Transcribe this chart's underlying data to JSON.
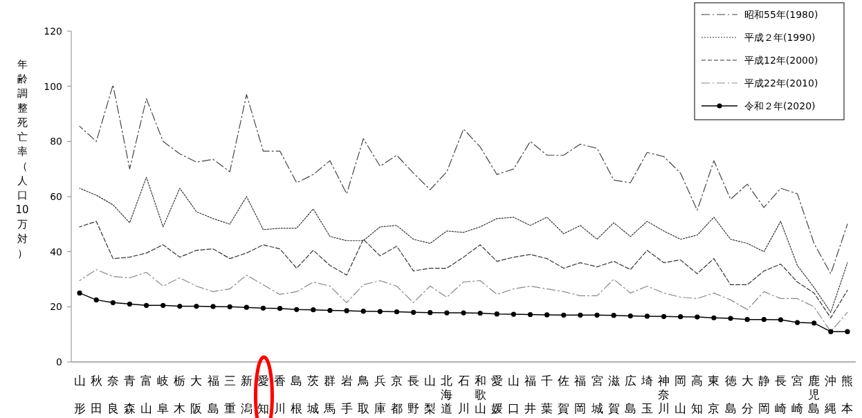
{
  "chart_data": {
    "type": "line",
    "ylabel": "年齢調整死亡率（人口10万対）",
    "categories": [
      "山形",
      "秋田",
      "奈良",
      "青森",
      "富山",
      "岐阜",
      "栃木",
      "大阪",
      "福島",
      "三重",
      "新潟",
      "愛知",
      "香川",
      "島根",
      "茨城",
      "群馬",
      "岩手",
      "鳥取",
      "兵庫",
      "京都",
      "長野",
      "山梨",
      "北海道",
      "石川",
      "和歌山",
      "愛媛",
      "山口",
      "福井",
      "千葉",
      "佐賀",
      "福岡",
      "宮城",
      "滋賀",
      "広島",
      "埼玉",
      "神奈川",
      "岡山",
      "高知",
      "東京",
      "徳島",
      "大分",
      "静岡",
      "長崎",
      "宮崎",
      "鹿児島",
      "沖縄",
      "熊本"
    ],
    "ylim": [
      0,
      120
    ],
    "yticks": [
      0,
      20,
      40,
      60,
      80,
      100,
      120
    ],
    "grid": false,
    "legend": "top right",
    "series": [
      {
        "name": "昭和55年(1980)",
        "color": "#444444",
        "line_style": "dashdot",
        "marker": "none",
        "values": [
          85.5,
          80,
          100.5,
          70,
          95.5,
          80,
          75.5,
          72.5,
          73.5,
          69,
          97,
          76.5,
          76.5,
          65,
          68,
          73,
          61,
          81,
          71,
          75,
          68.5,
          62.5,
          69,
          84.5,
          78,
          68,
          70,
          80,
          75,
          75,
          79,
          77.5,
          66,
          65,
          76,
          74.5,
          68.5,
          55,
          73,
          59,
          64.5,
          56,
          63,
          61,
          43,
          32,
          50
        ]
      },
      {
        "name": "平成２年(1990)",
        "color": "#333333",
        "line_style": "dotted",
        "marker": "none",
        "values": [
          63,
          60.5,
          57,
          50.5,
          67,
          49,
          63,
          54.5,
          52,
          50,
          60,
          48,
          48.5,
          48.5,
          55.5,
          45.5,
          44,
          44,
          49,
          49.5,
          44.5,
          43,
          47.5,
          47,
          49,
          52,
          52.5,
          49.5,
          52.5,
          46.5,
          49.5,
          44.5,
          50.5,
          45.5,
          51,
          47.5,
          44.5,
          46,
          52.5,
          44.5,
          43,
          40,
          51,
          35,
          27,
          18,
          36
        ]
      },
      {
        "name": "平成12年(2000)",
        "color": "#333333",
        "line_style": "dashed",
        "marker": "none",
        "values": [
          49,
          51,
          37.5,
          38,
          39.5,
          42.5,
          38,
          40.5,
          41,
          37.5,
          39.5,
          42.5,
          41,
          34,
          40.5,
          35,
          31.5,
          44.5,
          38.5,
          42,
          33,
          34,
          34,
          38,
          42.5,
          36.5,
          38,
          39,
          37.5,
          34,
          36,
          34.5,
          36.5,
          33.5,
          40.5,
          36,
          37,
          32,
          37.5,
          28,
          28,
          33,
          35.5,
          29,
          25,
          16,
          26
        ]
      },
      {
        "name": "平成22年(2010)",
        "color": "#888888",
        "line_style": "dashdot",
        "marker": "none",
        "values": [
          29.5,
          33.5,
          31,
          30.5,
          32.5,
          27.5,
          30.5,
          27.5,
          25.5,
          26.5,
          31.5,
          28,
          24.5,
          25.5,
          29,
          27.5,
          21.5,
          28,
          29.5,
          27.5,
          21.5,
          27.5,
          23.5,
          29,
          29.5,
          24.5,
          26.5,
          27.5,
          26.5,
          25.5,
          24,
          24,
          30,
          25,
          27.5,
          25,
          23.5,
          23,
          25,
          22.5,
          19,
          25.5,
          23,
          23,
          20,
          11,
          18
        ]
      },
      {
        "name": "令和２年(2020)",
        "color": "#000000",
        "line_style": "solid",
        "marker": "circle",
        "values": [
          25,
          22.5,
          21.5,
          21,
          20.5,
          20.5,
          20.2,
          20.2,
          20.1,
          20,
          19.8,
          19.5,
          19.4,
          19,
          18.9,
          18.7,
          18.6,
          18.4,
          18.3,
          18.2,
          18,
          17.9,
          17.8,
          17.8,
          17.7,
          17.4,
          17.3,
          17.2,
          17.1,
          17,
          17,
          17,
          16.9,
          16.7,
          16.6,
          16.5,
          16.4,
          16.3,
          16,
          15.8,
          15.4,
          15.4,
          15.3,
          14.3,
          14.1,
          11,
          11
        ]
      }
    ]
  }
}
